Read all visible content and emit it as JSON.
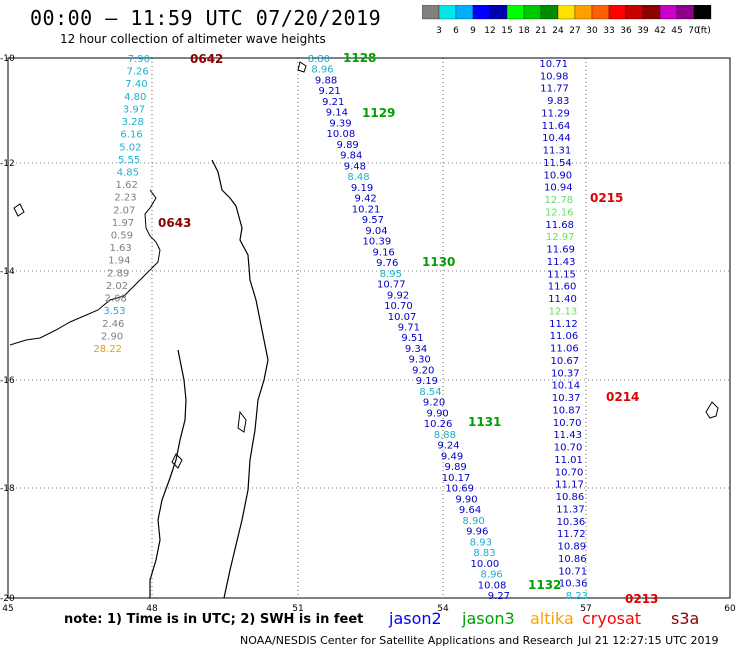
{
  "header": {
    "title": "00:00 – 11:59 UTC 07/20/2019",
    "subtitle": "12 hour collection of altimeter wave heights"
  },
  "legend": {
    "colors": [
      "#808080",
      "#00e8e8",
      "#00b0ff",
      "#0000ff",
      "#0000b0",
      "#00ff00",
      "#00c800",
      "#008c00",
      "#ffe000",
      "#ffa000",
      "#ff6000",
      "#ff0000",
      "#c80000",
      "#8c0000",
      "#c800c8",
      "#8c008c",
      "#000000"
    ],
    "labels": [
      "3",
      "6",
      "9",
      "12",
      "15",
      "18",
      "21",
      "24",
      "27",
      "30",
      "33",
      "36",
      "39",
      "42",
      "45",
      "70",
      "(ft)"
    ]
  },
  "axes": {
    "x_ticks": [
      "45",
      "48",
      "51",
      "54",
      "57",
      "60"
    ],
    "y_ticks": [
      "-10",
      "-12",
      "-14",
      "-16",
      "-18",
      "-20"
    ]
  },
  "tracks": [
    {
      "name": "track-0642",
      "time_label": "0642",
      "time_color": "#8c0000",
      "values": [
        {
          "v": "7.90",
          "c": "#1ab0d0"
        },
        {
          "v": "7.26",
          "c": "#1ab0d0"
        },
        {
          "v": "7.40",
          "c": "#1ab0d0"
        },
        {
          "v": "4.80",
          "c": "#1ab0d0"
        },
        {
          "v": "3.97",
          "c": "#1ab0d0"
        },
        {
          "v": "3.28",
          "c": "#1ab0d0"
        },
        {
          "v": "6.16",
          "c": "#1ab0d0"
        },
        {
          "v": "5.02",
          "c": "#1ab0d0"
        },
        {
          "v": "5.55",
          "c": "#1ab0d0"
        },
        {
          "v": "4.85",
          "c": "#1ab0d0"
        },
        {
          "v": "1.62",
          "c": "#808080"
        },
        {
          "v": "2.23",
          "c": "#808080"
        },
        {
          "v": "2.07",
          "c": "#808080"
        },
        {
          "v": "1.97",
          "c": "#808080"
        },
        {
          "v": "0.59",
          "c": "#808080"
        },
        {
          "v": "1.63",
          "c": "#808080"
        },
        {
          "v": "1.94",
          "c": "#808080"
        },
        {
          "v": "2.89",
          "c": "#808080"
        },
        {
          "v": "2.02",
          "c": "#808080"
        },
        {
          "v": "2.08",
          "c": "#808080"
        },
        {
          "v": "3.53",
          "c": "#1ab0d0"
        },
        {
          "v": "2.46",
          "c": "#808080"
        },
        {
          "v": "2.90",
          "c": "#808080"
        },
        {
          "v": "28.22",
          "c": "#e8a000"
        }
      ],
      "time_label_2": "0643"
    },
    {
      "name": "track-1128",
      "time_labels": [
        "1128",
        "1129",
        "1130",
        "1131",
        "1132"
      ],
      "values": [
        {
          "v": "8.80",
          "c": "#1ab0d0"
        },
        {
          "v": "8.96",
          "c": "#1ab0d0"
        },
        {
          "v": "9.88",
          "c": "#0000c8"
        },
        {
          "v": "9.21",
          "c": "#0000c8"
        },
        {
          "v": "9.21",
          "c": "#0000c8"
        },
        {
          "v": "9.14",
          "c": "#0000c8"
        },
        {
          "v": "9.39",
          "c": "#0000c8"
        },
        {
          "v": "10.08",
          "c": "#0000c8"
        },
        {
          "v": "9.89",
          "c": "#0000c8"
        },
        {
          "v": "9.84",
          "c": "#0000c8"
        },
        {
          "v": "9.48",
          "c": "#0000c8"
        },
        {
          "v": "8.48",
          "c": "#1ab0d0"
        },
        {
          "v": "9.19",
          "c": "#0000c8"
        },
        {
          "v": "9.42",
          "c": "#0000c8"
        },
        {
          "v": "10.21",
          "c": "#0000c8"
        },
        {
          "v": "9.57",
          "c": "#0000c8"
        },
        {
          "v": "9.04",
          "c": "#0000c8"
        },
        {
          "v": "10.39",
          "c": "#0000c8"
        },
        {
          "v": "9.16",
          "c": "#0000c8"
        },
        {
          "v": "9.76",
          "c": "#0000c8"
        },
        {
          "v": "8.95",
          "c": "#1ab0d0"
        },
        {
          "v": "10.77",
          "c": "#0000c8"
        },
        {
          "v": "9.92",
          "c": "#0000c8"
        },
        {
          "v": "10.70",
          "c": "#0000c8"
        },
        {
          "v": "10.07",
          "c": "#0000c8"
        },
        {
          "v": "9.71",
          "c": "#0000c8"
        },
        {
          "v": "9.51",
          "c": "#0000c8"
        },
        {
          "v": "9.34",
          "c": "#0000c8"
        },
        {
          "v": "9.30",
          "c": "#0000c8"
        },
        {
          "v": "9.20",
          "c": "#0000c8"
        },
        {
          "v": "9.19",
          "c": "#0000c8"
        },
        {
          "v": "8.54",
          "c": "#1ab0d0"
        },
        {
          "v": "9.20",
          "c": "#0000c8"
        },
        {
          "v": "9.90",
          "c": "#0000c8"
        },
        {
          "v": "10.26",
          "c": "#0000c8"
        },
        {
          "v": "8.88",
          "c": "#1ab0d0"
        },
        {
          "v": "9.24",
          "c": "#0000c8"
        },
        {
          "v": "9.49",
          "c": "#0000c8"
        },
        {
          "v": "9.89",
          "c": "#0000c8"
        },
        {
          "v": "10.17",
          "c": "#0000c8"
        },
        {
          "v": "10.69",
          "c": "#0000c8"
        },
        {
          "v": "9.90",
          "c": "#0000c8"
        },
        {
          "v": "9.64",
          "c": "#0000c8"
        },
        {
          "v": "8.90",
          "c": "#1ab0d0"
        },
        {
          "v": "9.96",
          "c": "#0000c8"
        },
        {
          "v": "8.93",
          "c": "#1ab0d0"
        },
        {
          "v": "8.83",
          "c": "#1ab0d0"
        },
        {
          "v": "10.00",
          "c": "#0000c8"
        },
        {
          "v": "8.96",
          "c": "#1ab0d0"
        },
        {
          "v": "10.08",
          "c": "#0000c8"
        },
        {
          "v": "9.27",
          "c": "#0000c8"
        }
      ]
    },
    {
      "name": "track-0215",
      "time_labels": [
        "0215",
        "0214",
        "0213"
      ],
      "values": [
        {
          "v": "10.71",
          "c": "#0000c8"
        },
        {
          "v": "10.98",
          "c": "#0000c8"
        },
        {
          "v": "11.77",
          "c": "#0000c8"
        },
        {
          "v": "9.83",
          "c": "#0000c8"
        },
        {
          "v": "11.29",
          "c": "#0000c8"
        },
        {
          "v": "11.64",
          "c": "#0000c8"
        },
        {
          "v": "10.44",
          "c": "#0000c8"
        },
        {
          "v": "11.31",
          "c": "#0000c8"
        },
        {
          "v": "11.54",
          "c": "#0000c8"
        },
        {
          "v": "10.90",
          "c": "#0000c8"
        },
        {
          "v": "10.94",
          "c": "#0000c8"
        },
        {
          "v": "12.78",
          "c": "#66e066"
        },
        {
          "v": "12.16",
          "c": "#66e066"
        },
        {
          "v": "11.68",
          "c": "#0000c8"
        },
        {
          "v": "12.97",
          "c": "#66e066"
        },
        {
          "v": "11.69",
          "c": "#0000c8"
        },
        {
          "v": "11.43",
          "c": "#0000c8"
        },
        {
          "v": "11.15",
          "c": "#0000c8"
        },
        {
          "v": "11.60",
          "c": "#0000c8"
        },
        {
          "v": "11.40",
          "c": "#0000c8"
        },
        {
          "v": "12.13",
          "c": "#66e066"
        },
        {
          "v": "11.12",
          "c": "#0000c8"
        },
        {
          "v": "11.06",
          "c": "#0000c8"
        },
        {
          "v": "11.06",
          "c": "#0000c8"
        },
        {
          "v": "10.67",
          "c": "#0000c8"
        },
        {
          "v": "10.37",
          "c": "#0000c8"
        },
        {
          "v": "10.14",
          "c": "#0000c8"
        },
        {
          "v": "10.37",
          "c": "#0000c8"
        },
        {
          "v": "10.87",
          "c": "#0000c8"
        },
        {
          "v": "10.70",
          "c": "#0000c8"
        },
        {
          "v": "11.43",
          "c": "#0000c8"
        },
        {
          "v": "10.70",
          "c": "#0000c8"
        },
        {
          "v": "11.01",
          "c": "#0000c8"
        },
        {
          "v": "10.70",
          "c": "#0000c8"
        },
        {
          "v": "11.17",
          "c": "#0000c8"
        },
        {
          "v": "10.86",
          "c": "#0000c8"
        },
        {
          "v": "11.37",
          "c": "#0000c8"
        },
        {
          "v": "10.36",
          "c": "#0000c8"
        },
        {
          "v": "11.72",
          "c": "#0000c8"
        },
        {
          "v": "10.89",
          "c": "#0000c8"
        },
        {
          "v": "10.86",
          "c": "#0000c8"
        },
        {
          "v": "10.71",
          "c": "#0000c8"
        },
        {
          "v": "10.36",
          "c": "#0000c8"
        },
        {
          "v": "8.23",
          "c": "#1ab0d0"
        }
      ]
    }
  ],
  "footer": {
    "note": "note: 1) Time is in UTC; 2) SWH is in feet",
    "satellites": [
      {
        "name": "jason2",
        "color": "#0000ff"
      },
      {
        "name": "jason3",
        "color": "#00a000"
      },
      {
        "name": "altika",
        "color": "#ffa000"
      },
      {
        "name": "cryosat",
        "color": "#ff0000"
      },
      {
        "name": "s3a",
        "color": "#8c0000"
      }
    ],
    "credit": "NOAA/NESDIS Center for Satellite Applications and Research",
    "timestamp": "Jul 21 12:27:15 UTC 2019"
  }
}
